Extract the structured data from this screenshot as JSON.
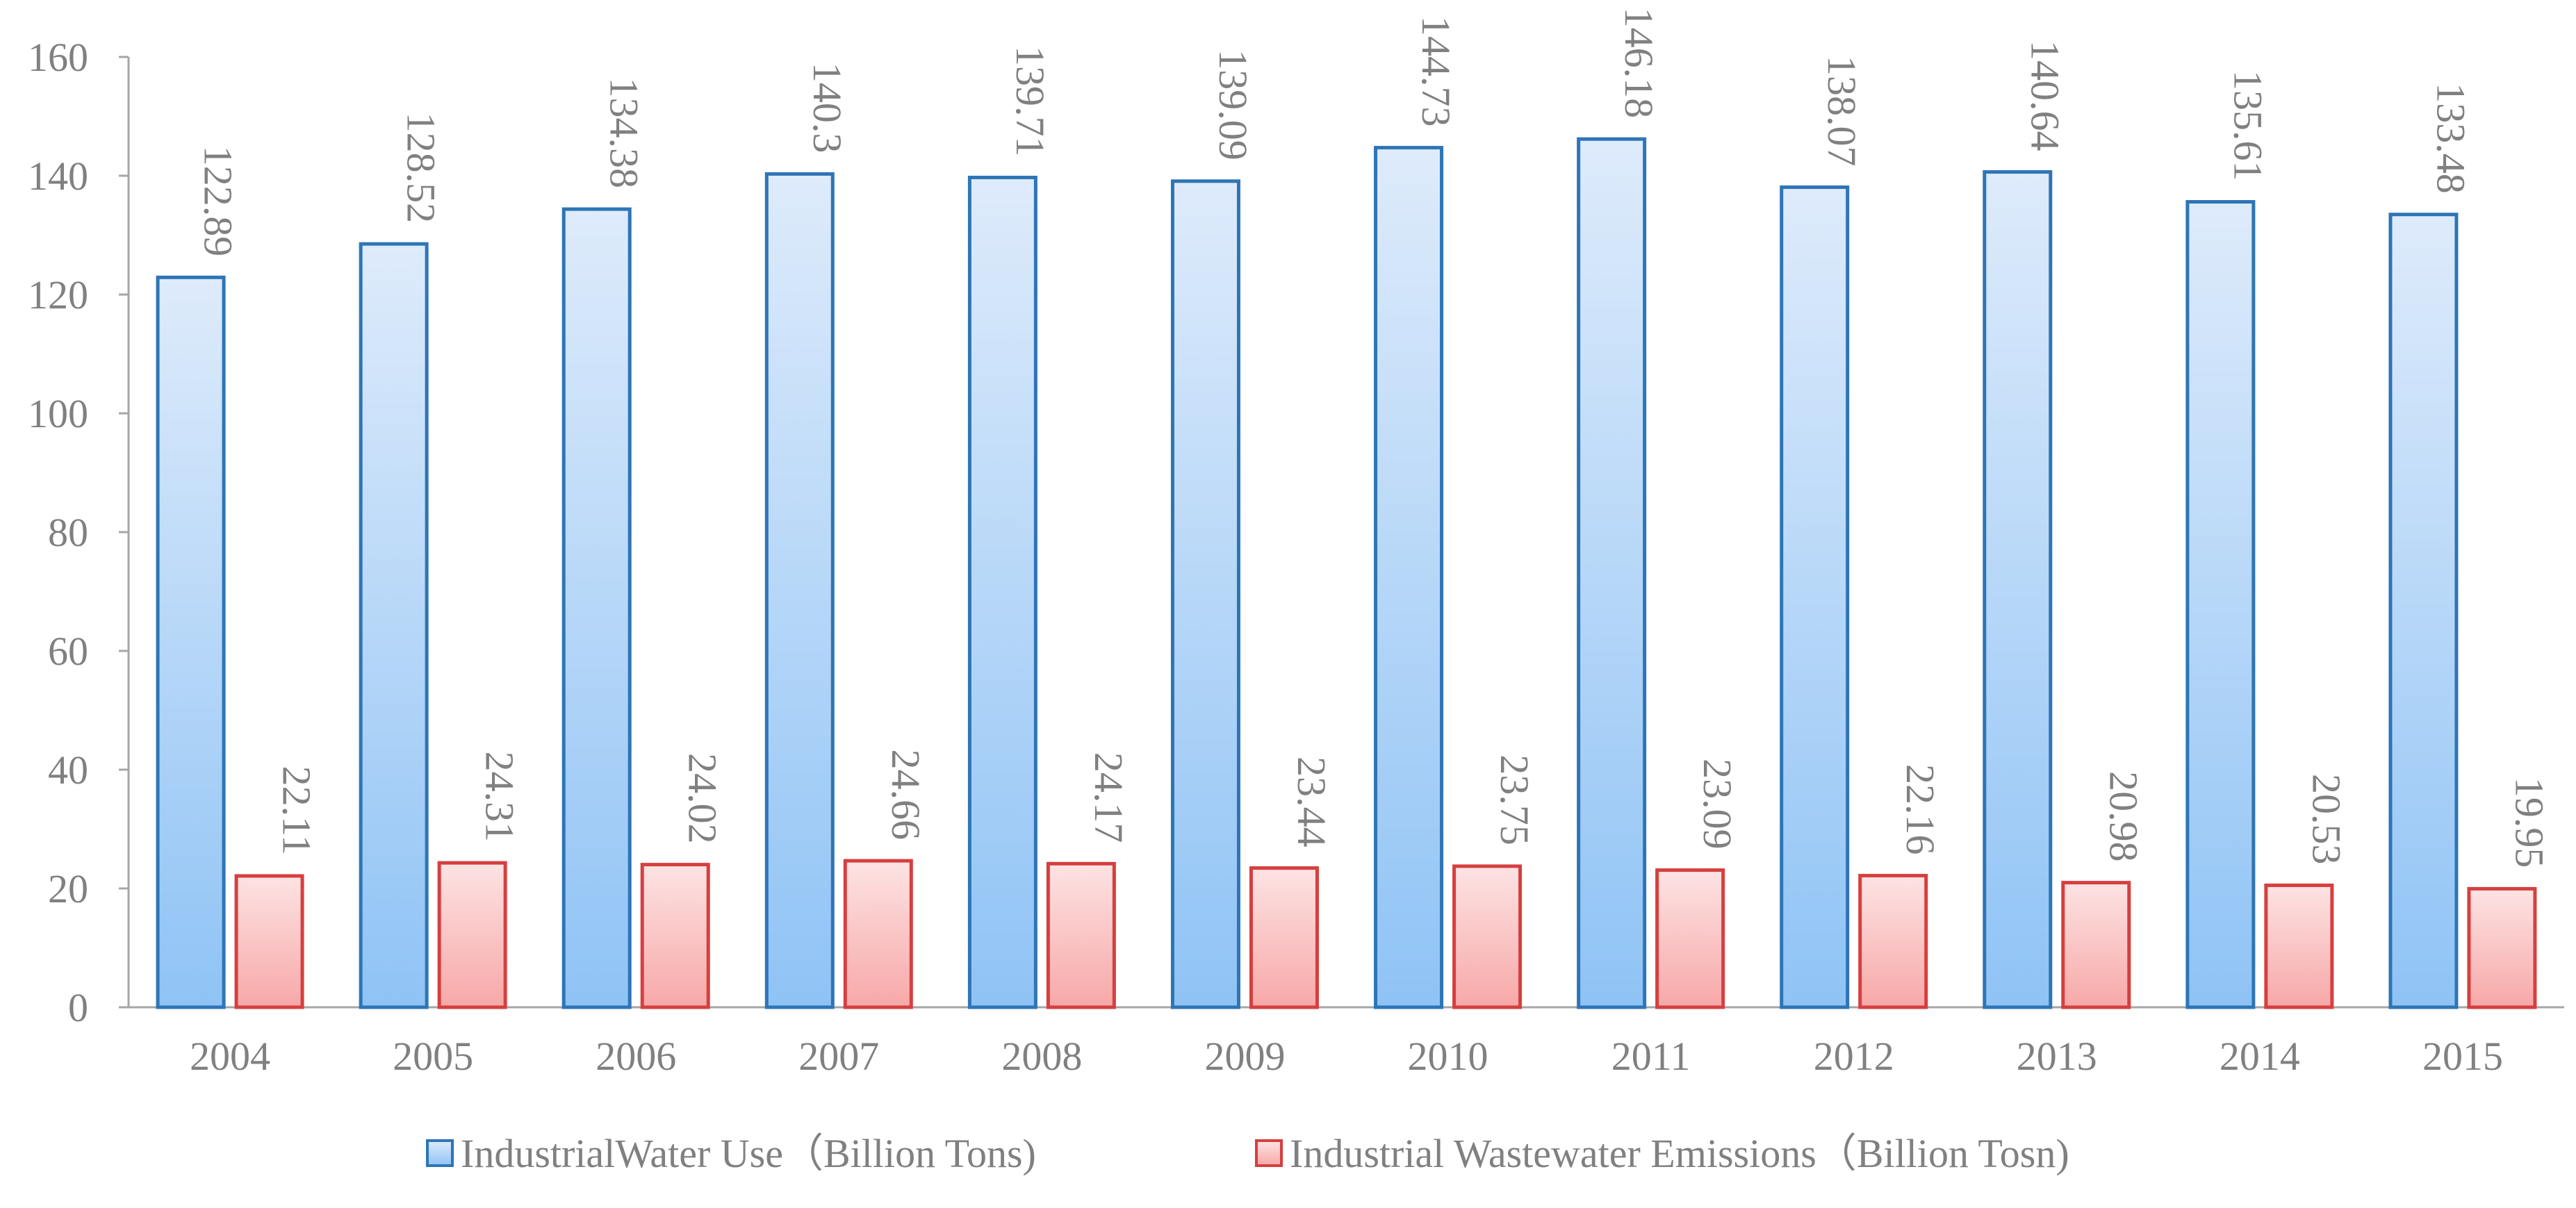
{
  "chart_data": {
    "type": "bar",
    "title": "",
    "xlabel": "",
    "ylabel": "",
    "ylim": [
      0,
      160
    ],
    "yticks": [
      0,
      20,
      40,
      60,
      80,
      100,
      120,
      140,
      160
    ],
    "grid": false,
    "legend_position": "bottom",
    "categories": [
      "2004",
      "2005",
      "2006",
      "2007",
      "2008",
      "2009",
      "2010",
      "2011",
      "2012",
      "2013",
      "2014",
      "2015"
    ],
    "series": [
      {
        "name": "IndustrialWater Use（Billion Tons)",
        "color": "#2e75b6",
        "fill_top": "#deebfb",
        "fill_bottom": "#8fc3f5",
        "values": [
          122.89,
          128.52,
          134.38,
          140.3,
          139.71,
          139.09,
          144.73,
          146.18,
          138.07,
          140.64,
          135.61,
          133.48
        ],
        "labels": [
          "122.89",
          "128.52",
          "134.38",
          "140.3",
          "139.71",
          "139.09",
          "144.73",
          "146.18",
          "138.07",
          "140.64",
          "135.61",
          "133.48"
        ]
      },
      {
        "name": "Industrial Wastewater Emissions（Billion Tosn)",
        "color": "#d63f3f",
        "fill_top": "#fde3e3",
        "fill_bottom": "#f7a8a8",
        "values": [
          22.11,
          24.31,
          24.02,
          24.66,
          24.17,
          23.44,
          23.75,
          23.09,
          22.16,
          20.98,
          20.53,
          19.95
        ],
        "labels": [
          "22.11",
          "24.31",
          "24.02",
          "24.66",
          "24.17",
          "23.44",
          "23.75",
          "23.09",
          "22.16",
          "20.98",
          "20.53",
          "19.95"
        ]
      }
    ]
  }
}
